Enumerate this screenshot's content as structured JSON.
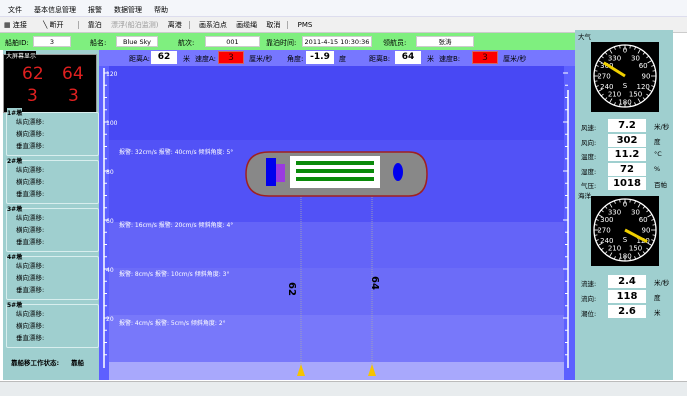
{
  "menu": [
    "文件",
    "基本信息管理",
    "报警",
    "数据管理",
    "帮助"
  ],
  "toolbar": [
    "连接",
    "断开",
    "靠泊",
    "漂浮(船泊监测)",
    "离港",
    "画系泊点",
    "画缆绳",
    "取消",
    "PMS"
  ],
  "info": {
    "ship_id_label": "船舶ID:",
    "ship_id": "3",
    "ship_name_label": "船名:",
    "ship_name": "Blue Sky",
    "voyage_label": "航次:",
    "voyage": "001",
    "berth_time_label": "靠泊时间:",
    "berth_time": "2011-4-15 10:30:36",
    "pilot_label": "领航员:",
    "pilot": "张涛"
  },
  "bigscreen": {
    "title": "大屏幕显示",
    "values": [
      "62",
      "64",
      "3",
      "3"
    ]
  },
  "piers": [
    {
      "title": "1#墩",
      "rows": [
        "纵向漂移:",
        "横向漂移:",
        "垂直漂移:"
      ]
    },
    {
      "title": "2#墩",
      "rows": [
        "纵向漂移:",
        "横向漂移:",
        "垂直漂移:"
      ]
    },
    {
      "title": "3#墩",
      "rows": [
        "纵向漂移:",
        "横向漂移:",
        "垂直漂移:"
      ]
    },
    {
      "title": "4#墩",
      "rows": [
        "纵向漂移:",
        "横向漂移:",
        "垂直漂移:"
      ]
    },
    {
      "title": "5#墩",
      "rows": [
        "纵向漂移:",
        "横向漂移:",
        "垂直漂移:"
      ]
    }
  ],
  "work_status": {
    "label": "靠船移工作状态:",
    "value": "靠船"
  },
  "measure": {
    "distA_label": "距离A:",
    "distA": "62",
    "m": "米",
    "speedA_label": "速度A:",
    "speedA": "3",
    "speed_unit": "厘米/秒",
    "angle_label": "角度:",
    "angle": "-1.9",
    "deg": "度",
    "distB_label": "距离B:",
    "distB": "64",
    "speedB_label": "速度B:",
    "speedB": "3"
  },
  "axis_ticks": [
    "120",
    "100",
    "80",
    "60",
    "40",
    "20"
  ],
  "bands": [
    {
      "text": "报警: 32cm/s    报警: 40cm/s    倾斜角度: 5°"
    },
    {
      "text": "报警: 16cm/s    报警: 20cm/s    倾斜角度: 4°"
    },
    {
      "text": "报警: 8cm/s    报警: 10cm/s    倾斜角度: 3°"
    },
    {
      "text": "报警: 4cm/s    报警: 5cm/s    倾斜角度: 2°"
    }
  ],
  "cable_labels": [
    "62",
    "64"
  ],
  "weather": {
    "title": "大气",
    "dial_labels": [
      "0",
      "30",
      "60",
      "90",
      "120",
      "150",
      "180",
      "210",
      "240",
      "270",
      "300",
      "330"
    ],
    "dial_s": "S",
    "needle_deg": 302,
    "rows": [
      {
        "label": "风速:",
        "value": "7.2",
        "unit": "米/秒"
      },
      {
        "label": "风向:",
        "value": "302",
        "unit": "度"
      },
      {
        "label": "温度:",
        "value": "11.2",
        "unit": "°C"
      },
      {
        "label": "湿度:",
        "value": "72",
        "unit": "%"
      },
      {
        "label": "气压:",
        "value": "1018",
        "unit": "百帕"
      }
    ]
  },
  "sea": {
    "title": "海洋",
    "needle_deg": 118,
    "rows": [
      {
        "label": "流速:",
        "value": "2.4",
        "unit": "米/秒"
      },
      {
        "label": "流向:",
        "value": "118",
        "unit": "度"
      },
      {
        "label": "潮位:",
        "value": "2.6",
        "unit": "米"
      }
    ]
  },
  "colors": {
    "alarm": "#ff0000",
    "green_bar": "#7fef7f",
    "panel": "#9fcfcf",
    "needle": "#f0d000"
  }
}
